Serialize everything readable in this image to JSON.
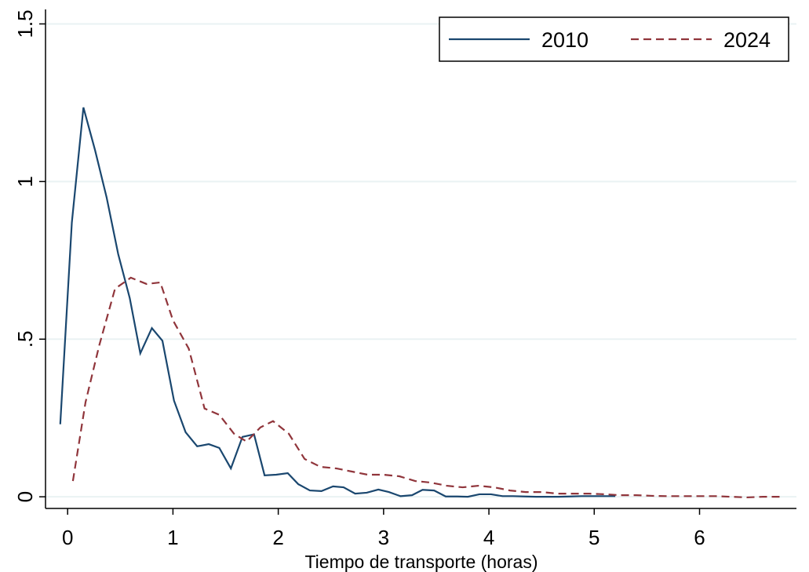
{
  "chart_data": {
    "type": "line",
    "xlabel": "Tiempo de transporte (horas)",
    "xlim": [
      -0.21,
      6.92
    ],
    "ylim": [
      -0.037,
      1.546
    ],
    "xticks": [
      0,
      1,
      2,
      3,
      4,
      5,
      6
    ],
    "yticks": [
      0,
      {
        "value": 0.5,
        "label": ".5"
      },
      1,
      1.5
    ],
    "grid": true,
    "legend": "top-right",
    "series": [
      {
        "name": "2010",
        "color": "#1a476f",
        "dash": "solid",
        "x": [
          -0.07,
          0.04,
          0.15,
          0.26,
          0.37,
          0.48,
          0.59,
          0.69,
          0.8,
          0.9,
          1.01,
          1.12,
          1.23,
          1.34,
          1.44,
          1.55,
          1.66,
          1.77,
          1.87,
          1.98,
          2.09,
          2.19,
          2.3,
          2.41,
          2.52,
          2.62,
          2.73,
          2.84,
          2.95,
          3.05,
          3.16,
          3.27,
          3.37,
          3.48,
          3.59,
          3.7,
          3.8,
          3.91,
          4.02,
          4.13,
          4.23,
          4.34,
          4.45,
          4.56,
          4.66,
          4.77,
          4.88,
          4.98,
          5.09,
          5.2
        ],
        "values": [
          0.23,
          0.87,
          1.235,
          1.1,
          0.95,
          0.77,
          0.63,
          0.455,
          0.535,
          0.495,
          0.305,
          0.205,
          0.16,
          0.167,
          0.155,
          0.09,
          0.19,
          0.198,
          0.068,
          0.07,
          0.075,
          0.04,
          0.02,
          0.018,
          0.033,
          0.03,
          0.01,
          0.013,
          0.023,
          0.015,
          0.002,
          0.005,
          0.022,
          0.02,
          0.001,
          0.001,
          0,
          0.008,
          0.008,
          0.002,
          0.002,
          0.001,
          0,
          0,
          0,
          0.001,
          0.002,
          0.002,
          0.002,
          0.002
        ]
      },
      {
        "name": "2024",
        "color": "#90353b",
        "dash": "dashed",
        "x": [
          0.05,
          0.17,
          0.3,
          0.45,
          0.6,
          0.75,
          0.88,
          1.0,
          1.15,
          1.3,
          1.44,
          1.58,
          1.7,
          1.83,
          1.95,
          2.1,
          2.25,
          2.4,
          2.55,
          2.7,
          2.85,
          3.0,
          3.15,
          3.3,
          3.45,
          3.6,
          3.75,
          3.9,
          4.05,
          4.2,
          4.35,
          4.5,
          4.65,
          4.8,
          4.95,
          5.1,
          5.25,
          5.4,
          5.55,
          5.7,
          5.85,
          6.0,
          6.15,
          6.3,
          6.45,
          6.6,
          6.8
        ],
        "values": [
          0.05,
          0.3,
          0.48,
          0.66,
          0.695,
          0.675,
          0.68,
          0.56,
          0.47,
          0.28,
          0.26,
          0.2,
          0.175,
          0.22,
          0.24,
          0.2,
          0.12,
          0.095,
          0.09,
          0.08,
          0.07,
          0.07,
          0.065,
          0.05,
          0.045,
          0.035,
          0.03,
          0.035,
          0.03,
          0.02,
          0.015,
          0.015,
          0.01,
          0.01,
          0.01,
          0.008,
          0.005,
          0.005,
          0.003,
          0.002,
          0.002,
          0.002,
          0.002,
          0,
          -0.002,
          0,
          0
        ]
      }
    ]
  }
}
